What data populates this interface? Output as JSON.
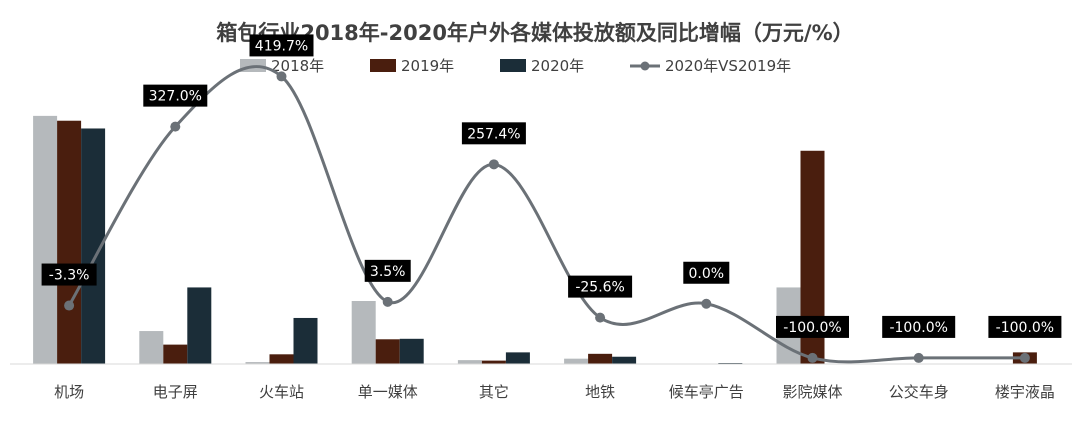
{
  "chart_data": {
    "type": "bar",
    "title": "箱包行业2018年-2020年户外各媒体投放额及同比增幅（万元/%）",
    "categories": [
      "机场",
      "电子屏",
      "火车站",
      "单一媒体",
      "其它",
      "地铁",
      "候车亭广告",
      "影院媒体",
      "公交车身",
      "楼宇液晶"
    ],
    "series": [
      {
        "name": "2018年",
        "color": "#b5b9bc",
        "values": [
          2560,
          340,
          20,
          650,
          40,
          55,
          0,
          790,
          0,
          0
        ]
      },
      {
        "name": "2019年",
        "color": "#4a1e0e",
        "values": [
          2510,
          200,
          100,
          255,
          35,
          105,
          0,
          2200,
          0,
          120
        ]
      },
      {
        "name": "2020年",
        "color": "#1b2d38",
        "values": [
          2430,
          790,
          475,
          260,
          120,
          75,
          10,
          0,
          0,
          0
        ]
      }
    ],
    "line_series": {
      "name": "2020年VS2019年",
      "color": "#6b7177",
      "values": [
        -3.3,
        327.0,
        419.7,
        3.5,
        257.4,
        -25.6,
        0.0,
        -100.0,
        -100.0,
        -100.0
      ],
      "labels": [
        "-3.3%",
        "327.0%",
        "419.7%",
        "3.5%",
        "257.4%",
        "-25.6%",
        "0.0%",
        "-100.0%",
        "-100.0%",
        "-100.0%"
      ]
    },
    "bar_ylim": [
      0,
      2600
    ],
    "line_ylim": [
      -150,
      450
    ],
    "legend_position": "top-center",
    "xlabel": "",
    "ylabel": "",
    "grid": false
  }
}
